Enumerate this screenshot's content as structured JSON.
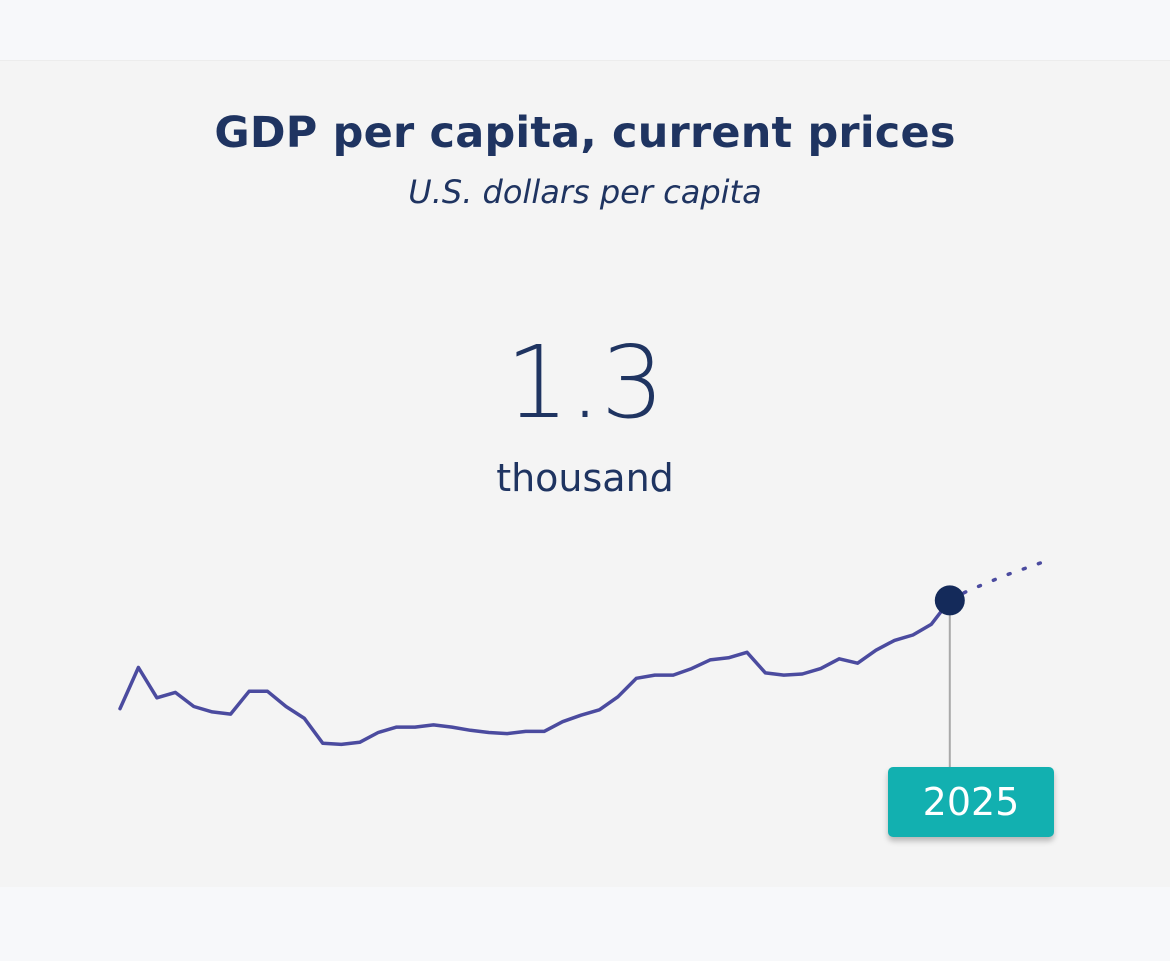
{
  "header": {
    "title": "GDP per capita, current prices",
    "subtitle": "U.S. dollars per capita"
  },
  "highlight": {
    "value": "1.3",
    "unit": "thousand",
    "year_label": "2025"
  },
  "colors": {
    "line": "#4b4b9f",
    "marker": "#142a5a",
    "tag": "#12b0b0",
    "text": "#1f3461"
  },
  "chart_data": {
    "type": "line",
    "title": "GDP per capita, current prices",
    "subtitle": "U.S. dollars per capita",
    "xlabel": "",
    "ylabel": "",
    "grid": false,
    "axes_visible": false,
    "series": [
      {
        "style": "solid",
        "x": [
          1980,
          1981,
          1982,
          1983,
          1984,
          1985,
          1986,
          1987,
          1988,
          1989,
          1990,
          1991,
          1992,
          1993,
          1994,
          1995,
          1996,
          1997,
          1998,
          1999,
          2000,
          2001,
          2002,
          2003,
          2004,
          2005,
          2006,
          2007,
          2008,
          2009,
          2010,
          2011,
          2012,
          2013,
          2014,
          2015,
          2016,
          2017,
          2018,
          2019,
          2020,
          2021,
          2022,
          2023,
          2024,
          2025
        ],
        "y": [
          800,
          990,
          850,
          875,
          810,
          785,
          775,
          880,
          880,
          810,
          755,
          640,
          635,
          645,
          690,
          715,
          715,
          725,
          715,
          700,
          690,
          685,
          695,
          695,
          740,
          770,
          795,
          855,
          940,
          955,
          955,
          985,
          1025,
          1035,
          1060,
          965,
          955,
          960,
          985,
          1030,
          1010,
          1070,
          1115,
          1140,
          1190,
          1300
        ]
      },
      {
        "style": "dotted",
        "x": [
          2025,
          2026,
          2027,
          2028,
          2029,
          2030
        ],
        "y": [
          1300,
          1345,
          1380,
          1415,
          1445,
          1475
        ]
      }
    ],
    "highlight": {
      "x": 2025,
      "y": 1300
    }
  }
}
